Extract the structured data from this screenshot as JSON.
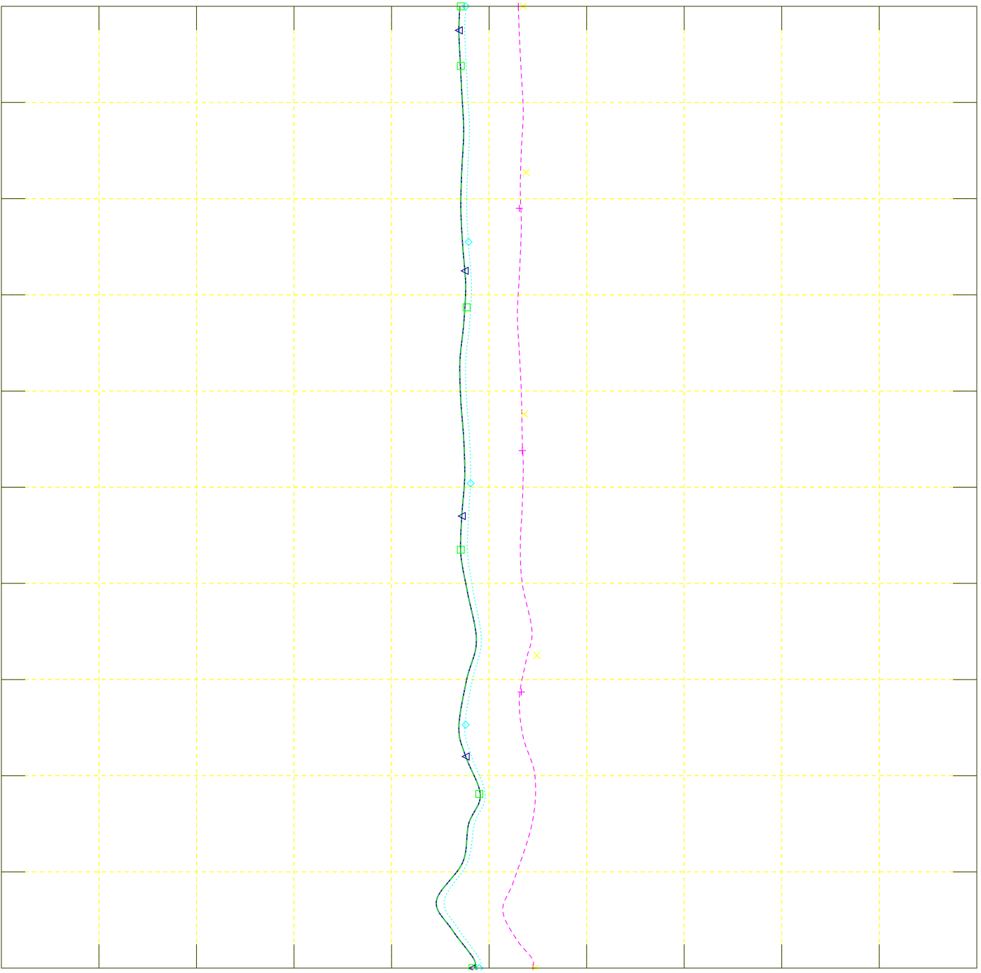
{
  "chart_data": {
    "type": "line",
    "title": "",
    "xlabel": "",
    "ylabel": "",
    "xlim": [
      0,
      10
    ],
    "ylim": [
      0,
      10
    ],
    "x_ticks": [
      0,
      1,
      2,
      3,
      4,
      5,
      6,
      7,
      8,
      9,
      10
    ],
    "y_ticks": [
      0,
      1,
      2,
      3,
      4,
      5,
      6,
      7,
      8,
      9,
      10
    ],
    "grid": true,
    "legend": "none",
    "colors": {
      "grid": "#ffff00",
      "axes": "#333300"
    },
    "series": [
      {
        "color": "#00008b",
        "line": "solid",
        "marker": "triangle-left",
        "points": [
          [
            4.7,
            10.0
          ],
          [
            4.69,
            9.75
          ],
          [
            4.7,
            9.5
          ],
          [
            4.72,
            9.1
          ],
          [
            4.74,
            8.7
          ],
          [
            4.72,
            8.3
          ],
          [
            4.71,
            7.9
          ],
          [
            4.73,
            7.5
          ],
          [
            4.76,
            7.1
          ],
          [
            4.74,
            6.7
          ],
          [
            4.7,
            6.3
          ],
          [
            4.71,
            5.9
          ],
          [
            4.74,
            5.5
          ],
          [
            4.75,
            5.1
          ],
          [
            4.72,
            4.7
          ],
          [
            4.71,
            4.3
          ],
          [
            4.78,
            3.9
          ],
          [
            4.87,
            3.4
          ],
          [
            4.77,
            3.0
          ],
          [
            4.69,
            2.5
          ],
          [
            4.76,
            2.2
          ],
          [
            4.91,
            1.8
          ],
          [
            4.79,
            1.5
          ],
          [
            4.73,
            1.1
          ],
          [
            4.46,
            0.7
          ],
          [
            4.62,
            0.4
          ],
          [
            4.84,
            0.1
          ],
          [
            4.85,
            0.0
          ]
        ],
        "markers": [
          [
            4.69,
            9.75
          ],
          [
            4.75,
            7.25
          ],
          [
            4.72,
            4.7
          ],
          [
            4.76,
            2.2
          ],
          [
            4.83,
            0.0
          ]
        ]
      },
      {
        "color": "#00ff00",
        "line": "dashdot",
        "marker": "square",
        "points": [
          [
            4.7,
            10.0
          ],
          [
            4.69,
            9.75
          ],
          [
            4.7,
            9.5
          ],
          [
            4.72,
            9.1
          ],
          [
            4.74,
            8.7
          ],
          [
            4.72,
            8.3
          ],
          [
            4.71,
            7.9
          ],
          [
            4.73,
            7.5
          ],
          [
            4.76,
            7.1
          ],
          [
            4.74,
            6.7
          ],
          [
            4.7,
            6.3
          ],
          [
            4.71,
            5.9
          ],
          [
            4.74,
            5.5
          ],
          [
            4.75,
            5.1
          ],
          [
            4.72,
            4.7
          ],
          [
            4.71,
            4.3
          ],
          [
            4.78,
            3.9
          ],
          [
            4.87,
            3.4
          ],
          [
            4.77,
            3.0
          ],
          [
            4.69,
            2.5
          ],
          [
            4.76,
            2.2
          ],
          [
            4.91,
            1.8
          ],
          [
            4.79,
            1.5
          ],
          [
            4.73,
            1.1
          ],
          [
            4.46,
            0.7
          ],
          [
            4.62,
            0.4
          ],
          [
            4.84,
            0.1
          ],
          [
            4.85,
            0.0
          ]
        ],
        "markers": [
          [
            4.71,
            10.0
          ],
          [
            4.71,
            9.38
          ],
          [
            4.77,
            6.87
          ],
          [
            4.71,
            4.35
          ],
          [
            4.9,
            1.81
          ],
          [
            4.83,
            0.0
          ]
        ]
      },
      {
        "color": "#00ffff",
        "line": "dotted",
        "marker": "diamond",
        "points": [
          [
            4.76,
            10.0
          ],
          [
            4.75,
            9.75
          ],
          [
            4.76,
            9.5
          ],
          [
            4.78,
            9.1
          ],
          [
            4.8,
            8.7
          ],
          [
            4.78,
            8.3
          ],
          [
            4.77,
            7.9
          ],
          [
            4.79,
            7.5
          ],
          [
            4.82,
            7.1
          ],
          [
            4.8,
            6.7
          ],
          [
            4.76,
            6.3
          ],
          [
            4.77,
            5.9
          ],
          [
            4.8,
            5.5
          ],
          [
            4.81,
            5.1
          ],
          [
            4.79,
            4.7
          ],
          [
            4.78,
            4.3
          ],
          [
            4.84,
            3.9
          ],
          [
            4.92,
            3.4
          ],
          [
            4.83,
            3.0
          ],
          [
            4.75,
            2.5
          ],
          [
            4.82,
            2.2
          ],
          [
            4.96,
            1.8
          ],
          [
            4.85,
            1.5
          ],
          [
            4.78,
            1.1
          ],
          [
            4.54,
            0.7
          ],
          [
            4.69,
            0.4
          ],
          [
            4.9,
            0.1
          ],
          [
            4.91,
            0.0
          ]
        ],
        "markers": [
          [
            4.76,
            10.0
          ],
          [
            4.79,
            7.55
          ],
          [
            4.81,
            5.04
          ],
          [
            4.76,
            2.53
          ],
          [
            4.9,
            0.0
          ]
        ]
      },
      {
        "color": "#ff00ff",
        "line": "dashed",
        "marker": "plus",
        "points": [
          [
            5.3,
            10.0
          ],
          [
            5.31,
            9.7
          ],
          [
            5.33,
            9.3
          ],
          [
            5.35,
            8.9
          ],
          [
            5.33,
            8.5
          ],
          [
            5.32,
            8.1
          ],
          [
            5.33,
            7.7
          ],
          [
            5.31,
            7.2
          ],
          [
            5.29,
            6.8
          ],
          [
            5.31,
            6.4
          ],
          [
            5.33,
            6.0
          ],
          [
            5.34,
            5.5
          ],
          [
            5.35,
            5.2
          ],
          [
            5.34,
            4.8
          ],
          [
            5.32,
            4.4
          ],
          [
            5.34,
            4.0
          ],
          [
            5.44,
            3.5
          ],
          [
            5.38,
            3.2
          ],
          [
            5.31,
            2.8
          ],
          [
            5.35,
            2.4
          ],
          [
            5.47,
            2.0
          ],
          [
            5.44,
            1.5
          ],
          [
            5.25,
            0.9
          ],
          [
            5.14,
            0.6
          ],
          [
            5.28,
            0.3
          ],
          [
            5.44,
            0.1
          ],
          [
            5.45,
            0.0
          ]
        ],
        "markers": [
          [
            5.3,
            10.0
          ],
          [
            5.31,
            7.9
          ],
          [
            5.34,
            5.38
          ],
          [
            5.33,
            2.87
          ],
          [
            5.45,
            0.0
          ]
        ]
      },
      {
        "color": "#ffff00",
        "line": "none",
        "marker": "x",
        "points": [],
        "markers": [
          [
            5.35,
            10.0
          ],
          [
            5.38,
            8.27
          ],
          [
            5.36,
            5.76
          ],
          [
            5.49,
            3.25
          ],
          [
            5.47,
            0.0
          ]
        ]
      }
    ]
  }
}
